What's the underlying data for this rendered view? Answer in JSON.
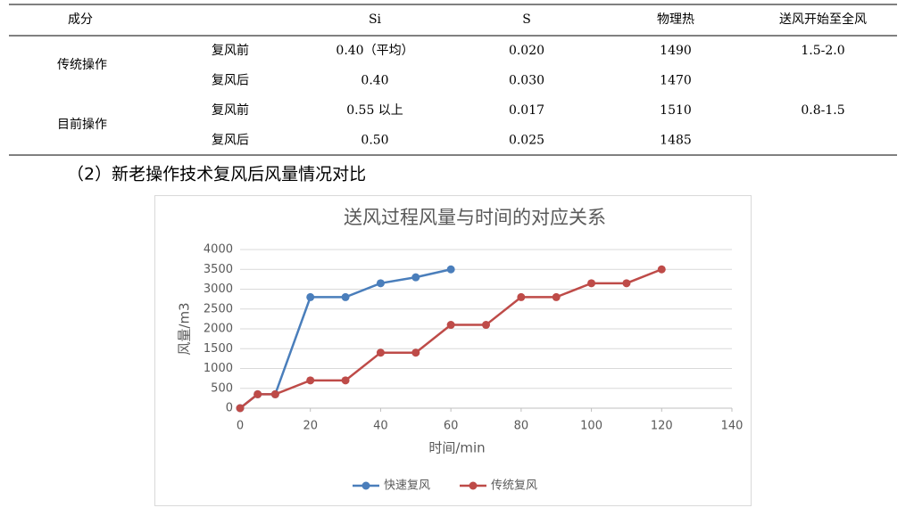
{
  "table": {
    "header": [
      "成分",
      "Si",
      "S",
      "物理热",
      "送风开始至全风"
    ],
    "groups": [
      {
        "name": "传统操作",
        "span": "1.5-2.0",
        "rows": [
          [
            "复风前",
            "0.40（平均）",
            "0.020",
            "1490"
          ],
          [
            "复风后",
            "0.40",
            "0.030",
            "1470"
          ]
        ]
      },
      {
        "name": "目前操作",
        "span": "0.8-1.5",
        "rows": [
          [
            "复风前",
            "0.55 以上",
            "0.017",
            "1510"
          ],
          [
            "复风后",
            "0.50",
            "0.025",
            "1485"
          ]
        ]
      }
    ]
  },
  "caption": "（2）新老操作技术复风后风量情况对比",
  "chart_data": {
    "type": "line",
    "title": "送风过程风量与时间的对应关系",
    "x_label": "时间/min",
    "y_label": "风量/m3",
    "xlim": [
      0,
      140
    ],
    "xticks": [
      0,
      20,
      40,
      60,
      80,
      100,
      120,
      140
    ],
    "ylim": [
      0,
      4000
    ],
    "yticks": [
      0,
      500,
      1000,
      1500,
      2000,
      2500,
      3000,
      3500,
      4000
    ],
    "grid": true,
    "legend": "bottom",
    "series": [
      {
        "name": "快速复风",
        "color": "#4a7ebb",
        "x": [
          0,
          5,
          10,
          20,
          30,
          40,
          50,
          60
        ],
        "values": [
          0,
          350,
          350,
          2800,
          2800,
          3150,
          3300,
          3500
        ]
      },
      {
        "name": "传统复风",
        "color": "#be4b48",
        "x": [
          0,
          5,
          10,
          20,
          30,
          40,
          50,
          60,
          70,
          80,
          90,
          100,
          110,
          120
        ],
        "values": [
          0,
          350,
          350,
          700,
          700,
          1400,
          1400,
          2100,
          2100,
          2800,
          2800,
          3150,
          3150,
          3500
        ]
      }
    ]
  }
}
